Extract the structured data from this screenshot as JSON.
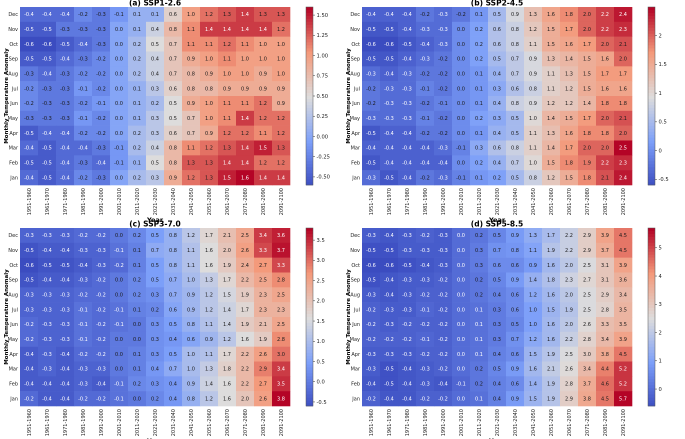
{
  "months": [
    "Dec",
    "Nov",
    "Oct",
    "Sep",
    "Aug",
    "Jul",
    "Jun",
    "May",
    "Apr",
    "Mar",
    "Feb",
    "Jan"
  ],
  "decades": [
    "1951-1960",
    "1961-1970",
    "1971-1980",
    "1981-1990",
    "1991-2000",
    "2001-2010",
    "2011-2020",
    "2021-2030",
    "2031-2040",
    "2041-2050",
    "2051-2060",
    "2061-2070",
    "2071-2080",
    "2081-2090",
    "2091-2100"
  ],
  "chart_data": [
    {
      "type": "heatmap",
      "title": "(a) SSP1-2.6",
      "xlabel": "Year",
      "ylabel": "Monthly Temperature Anomaly",
      "vmin": -0.6,
      "vmax": 1.6,
      "colorbar_ticks": [
        "1.50",
        "1.25",
        "1.00",
        "0.75",
        "0.50",
        "0.25",
        "0.00",
        "-0.25",
        "-0.50"
      ],
      "colorbar_tick_values": [
        1.5,
        1.25,
        1.0,
        0.75,
        0.5,
        0.25,
        0.0,
        -0.25,
        -0.5
      ],
      "values": [
        [
          -0.4,
          -0.4,
          -0.4,
          -0.2,
          -0.3,
          -0.1,
          0.1,
          0.1,
          0.6,
          1.0,
          1.2,
          1.3,
          1.4,
          1.3,
          1.3
        ],
        [
          -0.5,
          -0.5,
          -0.3,
          -0.3,
          -0.3,
          0.0,
          0.1,
          0.4,
          0.8,
          1.1,
          1.4,
          1.4,
          1.4,
          1.4,
          1.2
        ],
        [
          -0.6,
          -0.6,
          -0.5,
          -0.4,
          -0.3,
          0.0,
          0.2,
          0.5,
          0.7,
          1.1,
          1.1,
          1.2,
          1.1,
          1.0,
          1.0
        ],
        [
          -0.5,
          -0.5,
          -0.4,
          -0.3,
          -0.2,
          0.0,
          0.2,
          0.4,
          0.7,
          0.9,
          1.0,
          1.1,
          1.0,
          1.0,
          1.0
        ],
        [
          -0.3,
          -0.4,
          -0.3,
          -0.2,
          -0.2,
          0.0,
          0.2,
          0.4,
          0.7,
          0.8,
          0.9,
          1.0,
          1.0,
          0.9,
          1.0
        ],
        [
          -0.2,
          -0.3,
          -0.3,
          -0.1,
          -0.2,
          0.0,
          0.1,
          0.3,
          0.6,
          0.8,
          0.8,
          0.9,
          0.9,
          0.9,
          0.9
        ],
        [
          -0.2,
          -0.3,
          -0.3,
          -0.2,
          -0.1,
          0.0,
          0.1,
          0.2,
          0.5,
          0.9,
          1.0,
          1.1,
          1.1,
          1.2,
          0.9
        ],
        [
          -0.3,
          -0.3,
          -0.3,
          -0.1,
          -0.2,
          0.0,
          0.1,
          0.3,
          0.5,
          0.7,
          1.0,
          1.1,
          1.4,
          1.2,
          1.2
        ],
        [
          -0.5,
          -0.4,
          -0.4,
          -0.2,
          -0.2,
          0.0,
          0.2,
          0.3,
          0.6,
          0.7,
          0.9,
          1.2,
          1.2,
          1.1,
          1.2
        ],
        [
          -0.4,
          -0.5,
          -0.4,
          -0.4,
          -0.3,
          -0.1,
          0.2,
          0.4,
          0.8,
          1.1,
          1.2,
          1.3,
          1.4,
          1.5,
          1.3
        ],
        [
          -0.5,
          -0.5,
          -0.4,
          -0.3,
          -0.4,
          -0.1,
          0.1,
          0.5,
          0.8,
          1.3,
          1.3,
          1.4,
          1.4,
          1.2,
          1.2
        ],
        [
          -0.4,
          -0.5,
          -0.4,
          -0.2,
          -0.3,
          0.0,
          0.2,
          0.3,
          0.9,
          1.2,
          1.3,
          1.5,
          1.6,
          1.4,
          1.4
        ]
      ]
    },
    {
      "type": "heatmap",
      "title": "(b) SSP2-4.5",
      "xlabel": "Year",
      "ylabel": "Monthly Temperature Anomaly",
      "vmin": -0.6,
      "vmax": 2.5,
      "colorbar_ticks": [
        "2",
        "1.5",
        "1",
        "0.5",
        "0",
        "-0.5"
      ],
      "colorbar_tick_values": [
        2,
        1.5,
        1,
        0.5,
        0,
        -0.5
      ],
      "values": [
        [
          -0.4,
          -0.4,
          -0.4,
          -0.2,
          -0.3,
          -0.2,
          0.1,
          0.5,
          0.9,
          1.3,
          1.6,
          1.8,
          2.0,
          2.2,
          2.4
        ],
        [
          -0.5,
          -0.5,
          -0.4,
          -0.3,
          -0.3,
          0.0,
          0.2,
          0.6,
          0.8,
          1.2,
          1.5,
          1.7,
          2.0,
          2.2,
          2.3
        ],
        [
          -0.6,
          -0.6,
          -0.5,
          -0.4,
          -0.3,
          0.0,
          0.2,
          0.6,
          0.8,
          1.1,
          1.5,
          1.6,
          1.7,
          2.0,
          2.1
        ],
        [
          -0.5,
          -0.5,
          -0.4,
          -0.3,
          -0.2,
          0.0,
          0.2,
          0.5,
          0.7,
          0.9,
          1.3,
          1.4,
          1.5,
          1.6,
          2.0
        ],
        [
          -0.3,
          -0.4,
          -0.3,
          -0.2,
          -0.2,
          0.0,
          0.1,
          0.4,
          0.7,
          0.9,
          1.1,
          1.3,
          1.5,
          1.7,
          1.7
        ],
        [
          -0.2,
          -0.3,
          -0.3,
          -0.1,
          -0.2,
          0.0,
          0.1,
          0.3,
          0.6,
          0.8,
          1.1,
          1.2,
          1.5,
          1.6,
          1.6
        ],
        [
          -0.2,
          -0.3,
          -0.3,
          -0.2,
          -0.1,
          0.0,
          0.1,
          0.4,
          0.8,
          0.9,
          1.2,
          1.2,
          1.4,
          1.8,
          1.8
        ],
        [
          -0.3,
          -0.3,
          -0.3,
          -0.1,
          -0.2,
          0.0,
          0.2,
          0.3,
          0.5,
          1.0,
          1.4,
          1.5,
          1.7,
          2.0,
          2.1
        ],
        [
          -0.5,
          -0.4,
          -0.4,
          -0.2,
          -0.2,
          0.0,
          0.1,
          0.4,
          0.5,
          1.1,
          1.3,
          1.6,
          1.8,
          1.8,
          2.0
        ],
        [
          -0.4,
          -0.4,
          -0.4,
          -0.4,
          -0.3,
          -0.1,
          0.3,
          0.6,
          0.8,
          1.1,
          1.4,
          1.7,
          2.0,
          2.0,
          2.5
        ],
        [
          -0.5,
          -0.4,
          -0.4,
          -0.4,
          -0.4,
          0.0,
          0.2,
          0.4,
          0.7,
          1.0,
          1.5,
          1.8,
          1.9,
          2.2,
          2.3
        ],
        [
          -0.3,
          -0.5,
          -0.4,
          -0.2,
          -0.3,
          -0.1,
          0.1,
          0.2,
          0.5,
          0.8,
          1.2,
          1.5,
          1.8,
          2.1,
          2.4
        ]
      ]
    },
    {
      "type": "heatmap",
      "title": "(c) SSP3-7.0",
      "xlabel": "Year",
      "ylabel": "Monthly Temperature Anomaly",
      "vmin": -0.6,
      "vmax": 3.8,
      "colorbar_ticks": [
        "3.5",
        "3.0",
        "2.5",
        "2.0",
        "1.5",
        "1.0",
        "0.5",
        "0.0",
        "-0.5"
      ],
      "colorbar_tick_values": [
        3.5,
        3.0,
        2.5,
        2.0,
        1.5,
        1.0,
        0.5,
        0.0,
        -0.5
      ],
      "values": [
        [
          -0.3,
          -0.3,
          -0.3,
          -0.2,
          -0.2,
          0.0,
          0.2,
          0.5,
          0.8,
          1.2,
          1.7,
          2.1,
          2.5,
          3.4,
          3.6
        ],
        [
          -0.5,
          -0.4,
          -0.4,
          -0.3,
          -0.3,
          -0.1,
          0.1,
          0.7,
          0.8,
          1.1,
          1.6,
          2.0,
          2.6,
          3.3,
          3.7
        ],
        [
          -0.6,
          -0.5,
          -0.5,
          -0.4,
          -0.3,
          -0.2,
          0.1,
          0.5,
          0.8,
          1.1,
          1.6,
          1.9,
          2.4,
          2.7,
          3.3
        ],
        [
          -0.5,
          -0.4,
          -0.4,
          -0.3,
          -0.2,
          0.0,
          0.2,
          0.5,
          0.7,
          1.0,
          1.3,
          1.7,
          2.2,
          2.5,
          2.8
        ],
        [
          -0.3,
          -0.3,
          -0.3,
          -0.2,
          -0.2,
          0.0,
          0.2,
          0.3,
          0.7,
          0.9,
          1.2,
          1.5,
          1.9,
          2.3,
          2.5
        ],
        [
          -0.3,
          -0.3,
          -0.3,
          -0.1,
          -0.2,
          -0.1,
          0.1,
          0.2,
          0.6,
          0.9,
          1.2,
          1.4,
          1.7,
          2.3,
          2.3
        ],
        [
          -0.2,
          -0.3,
          -0.3,
          -0.1,
          -0.2,
          -0.1,
          0.0,
          0.3,
          0.5,
          0.8,
          1.1,
          1.4,
          1.9,
          2.1,
          2.5
        ],
        [
          -0.2,
          -0.3,
          -0.3,
          -0.1,
          -0.2,
          0.0,
          0.0,
          0.3,
          0.4,
          0.6,
          0.9,
          1.2,
          1.6,
          1.9,
          2.8
        ],
        [
          -0.4,
          -0.3,
          -0.4,
          -0.2,
          -0.2,
          0.0,
          0.1,
          0.3,
          0.5,
          1.0,
          1.1,
          1.7,
          2.2,
          2.6,
          3.0
        ],
        [
          -0.4,
          -0.3,
          -0.4,
          -0.3,
          -0.3,
          0.0,
          0.1,
          0.4,
          0.7,
          1.0,
          1.3,
          1.8,
          2.2,
          2.9,
          3.4
        ],
        [
          -0.4,
          -0.4,
          -0.4,
          -0.3,
          -0.4,
          -0.1,
          0.2,
          0.3,
          0.4,
          0.9,
          1.4,
          1.6,
          2.2,
          2.7,
          3.5
        ],
        [
          -0.2,
          -0.4,
          -0.4,
          -0.2,
          -0.2,
          -0.1,
          0.0,
          0.2,
          0.4,
          0.8,
          1.2,
          1.6,
          2.0,
          2.6,
          3.8
        ]
      ]
    },
    {
      "type": "heatmap",
      "title": "(d) SSP5-8.5",
      "xlabel": "Year",
      "ylabel": "Monthly Temperature Anomaly",
      "vmin": -0.6,
      "vmax": 5.7,
      "colorbar_ticks": [
        "5",
        "4",
        "3",
        "2",
        "1",
        "0"
      ],
      "colorbar_tick_values": [
        5,
        4,
        3,
        2,
        1,
        0
      ],
      "values": [
        [
          -0.3,
          -0.4,
          -0.3,
          -0.2,
          -0.3,
          0.0,
          0.2,
          0.5,
          0.9,
          1.3,
          1.7,
          2.2,
          2.9,
          3.9,
          4.5
        ],
        [
          -0.5,
          -0.5,
          -0.3,
          -0.3,
          -0.3,
          0.0,
          0.3,
          0.7,
          0.8,
          1.1,
          1.9,
          2.2,
          2.9,
          3.7,
          4.5
        ],
        [
          -0.6,
          -0.6,
          -0.5,
          -0.4,
          -0.3,
          0.0,
          0.3,
          0.6,
          0.6,
          0.9,
          1.6,
          2.0,
          2.5,
          3.1,
          3.9
        ],
        [
          -0.5,
          -0.4,
          -0.3,
          -0.3,
          -0.2,
          0.0,
          0.2,
          0.5,
          0.9,
          1.4,
          1.8,
          2.3,
          2.7,
          3.1,
          3.6
        ],
        [
          -0.3,
          -0.4,
          -0.3,
          -0.2,
          -0.2,
          0.0,
          0.2,
          0.4,
          0.6,
          1.2,
          1.6,
          2.0,
          2.5,
          2.9,
          3.4
        ],
        [
          -0.2,
          -0.3,
          -0.3,
          -0.1,
          -0.2,
          0.0,
          0.1,
          0.3,
          0.6,
          1.0,
          1.5,
          1.9,
          2.5,
          2.8,
          3.5
        ],
        [
          -0.2,
          -0.3,
          -0.2,
          -0.2,
          -0.2,
          0.0,
          0.1,
          0.3,
          0.5,
          1.0,
          1.6,
          2.0,
          2.6,
          3.3,
          3.5
        ],
        [
          -0.2,
          -0.2,
          -0.2,
          -0.1,
          -0.2,
          0.0,
          0.1,
          0.3,
          0.7,
          1.2,
          1.6,
          2.2,
          2.8,
          3.4,
          3.9
        ],
        [
          -0.3,
          -0.3,
          -0.3,
          -0.2,
          -0.2,
          0.0,
          0.1,
          0.4,
          0.6,
          1.5,
          1.9,
          2.5,
          3.0,
          3.8,
          4.5
        ],
        [
          -0.3,
          -0.5,
          -0.4,
          -0.3,
          -0.2,
          0.0,
          0.2,
          0.5,
          0.9,
          1.6,
          2.1,
          2.6,
          3.4,
          4.4,
          5.2
        ],
        [
          -0.4,
          -0.5,
          -0.4,
          -0.3,
          -0.4,
          -0.1,
          0.2,
          0.4,
          0.6,
          1.4,
          1.9,
          2.8,
          3.7,
          4.6,
          5.2
        ],
        [
          -0.2,
          -0.4,
          -0.4,
          -0.2,
          -0.2,
          0.0,
          0.1,
          0.4,
          0.9,
          1.5,
          1.9,
          2.9,
          3.8,
          4.5,
          5.7
        ]
      ]
    }
  ]
}
